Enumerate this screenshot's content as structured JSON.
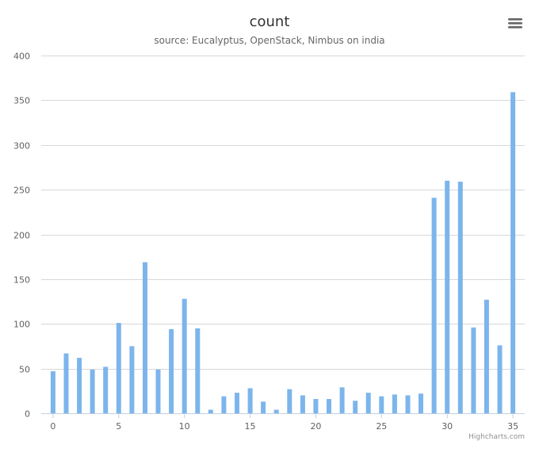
{
  "chart_data": {
    "type": "bar",
    "title": "count",
    "subtitle": "source: Eucalyptus, OpenStack, Nimbus on india",
    "x": [
      0,
      1,
      2,
      3,
      4,
      5,
      6,
      7,
      8,
      9,
      10,
      11,
      12,
      13,
      14,
      15,
      16,
      17,
      18,
      19,
      20,
      21,
      22,
      23,
      24,
      25,
      26,
      27,
      28,
      29,
      30,
      31,
      32,
      33,
      34,
      35
    ],
    "values": [
      47,
      67,
      62,
      49,
      52,
      101,
      75,
      169,
      49,
      94,
      128,
      95,
      4,
      19,
      23,
      28,
      13,
      4,
      27,
      20,
      16,
      16,
      29,
      14,
      23,
      19,
      21,
      20,
      22,
      241,
      260,
      259,
      96,
      127,
      76,
      359
    ],
    "xlim": [
      0,
      35
    ],
    "ylim": [
      0,
      400
    ],
    "x_ticks": [
      "0",
      "5",
      "10",
      "15",
      "20",
      "25",
      "30",
      "35"
    ],
    "y_ticks": [
      "0",
      "50",
      "100",
      "150",
      "200",
      "250",
      "300",
      "350",
      "400"
    ],
    "bar_color": "#7cb5ec",
    "grid": true,
    "legend": false
  },
  "credits": "Highcharts.com",
  "menu_icon": "hamburger-menu-icon",
  "colors": {
    "grid": "#d8d8d8",
    "axis": "#c0d0e0",
    "text": "#606060"
  }
}
